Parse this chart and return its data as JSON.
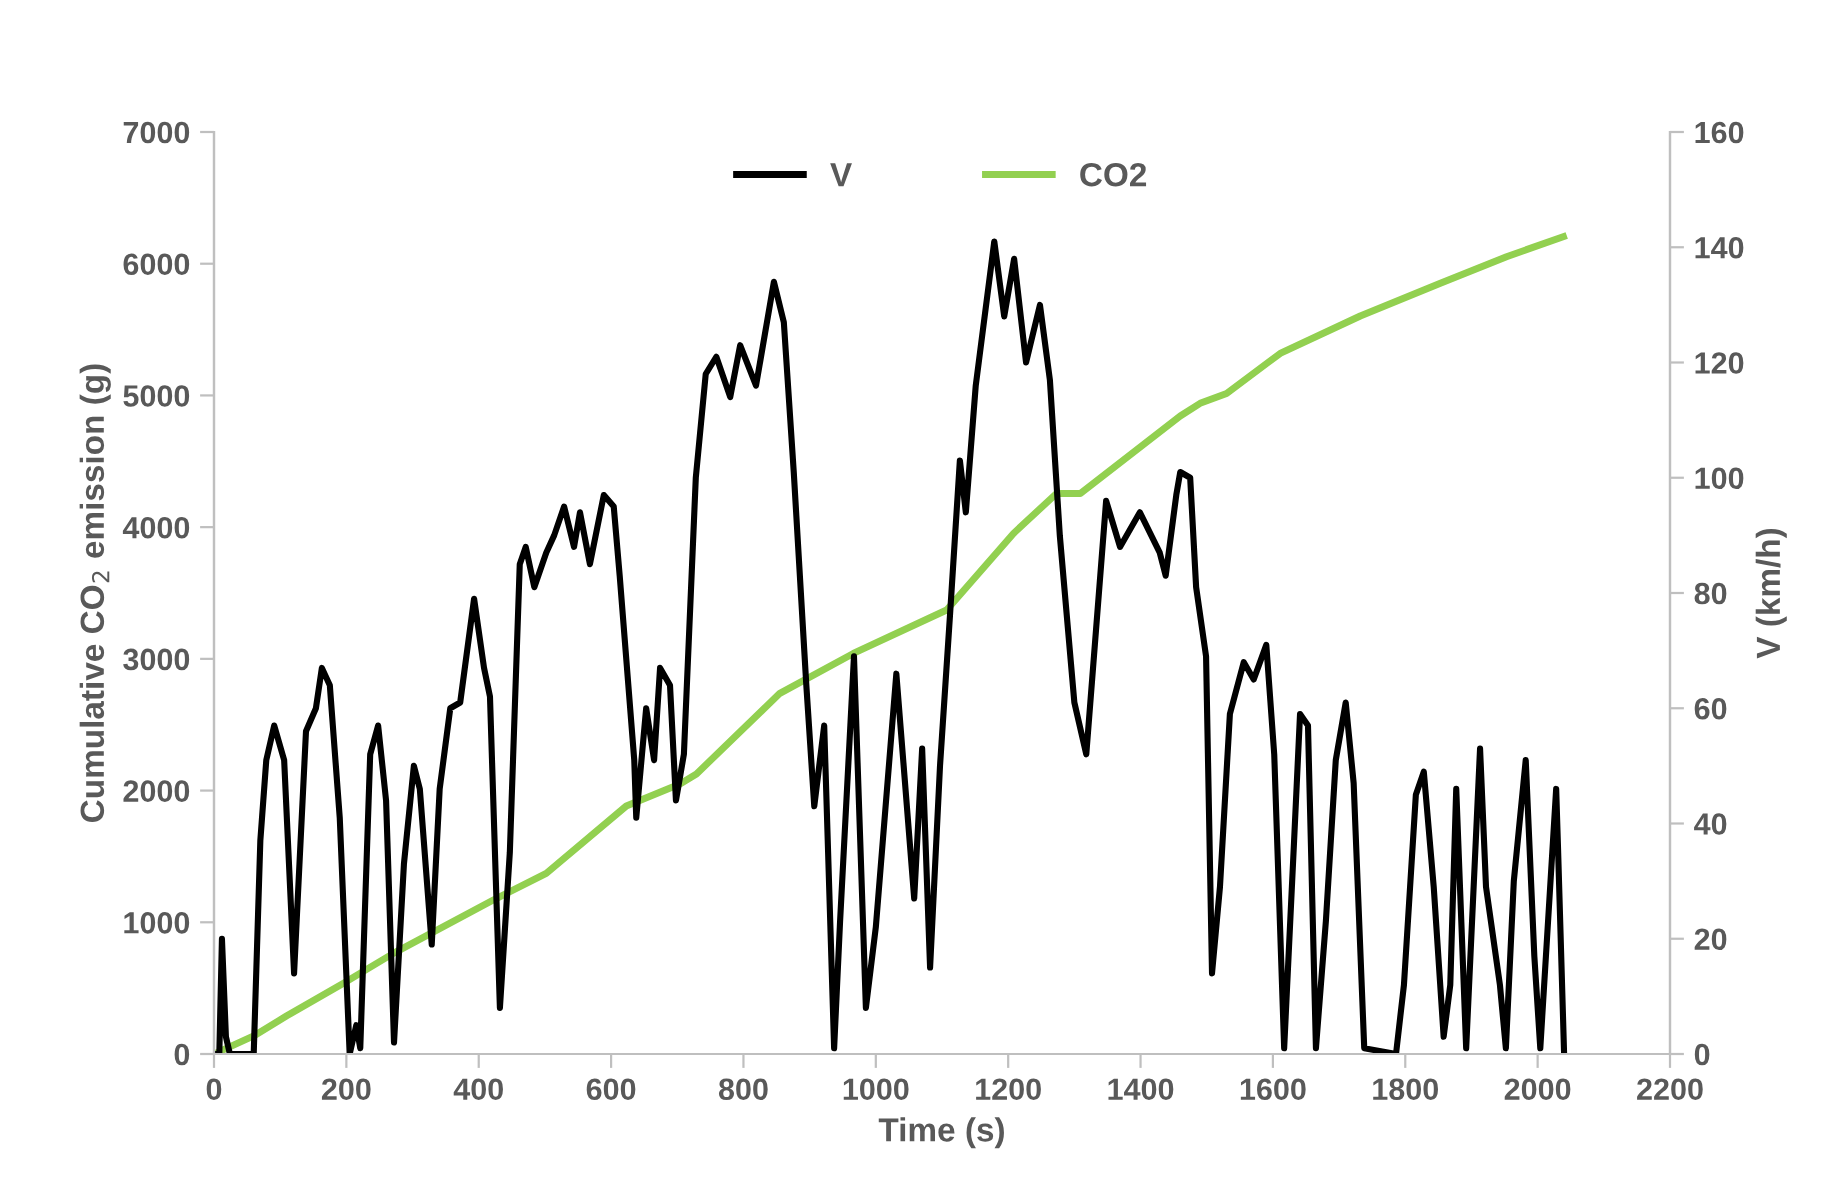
{
  "chart_data": {
    "type": "line",
    "xlabel": "Time (s)",
    "ylabel": "Cumulative CO$_{2}$ emission (g)",
    "y2label": "V (km/h)",
    "xlim": [
      0,
      2200
    ],
    "xticks": [
      0,
      200,
      400,
      600,
      800,
      1000,
      1200,
      1400,
      1600,
      1800,
      2000,
      2200
    ],
    "ylim": [
      0,
      7000
    ],
    "yticks": [
      0,
      1000,
      2000,
      3000,
      4000,
      5000,
      6000,
      7000
    ],
    "y2lim": [
      0,
      160
    ],
    "y2ticks": [
      0,
      20,
      40,
      60,
      80,
      100,
      120,
      140,
      160
    ],
    "grid": false,
    "legend": "top",
    "marker": "none",
    "line_style": "solid",
    "series": [
      {
        "name": "V",
        "color": "#000000",
        "axis": "y2",
        "x": [
          0,
          8,
          12,
          18,
          24,
          60,
          70,
          79,
          91,
          106,
          121,
          139,
          154,
          163,
          175,
          190,
          205,
          215,
          221,
          236,
          248,
          260,
          272,
          287,
          302,
          311,
          329,
          341,
          357,
          372,
          393,
          408,
          417,
          432,
          447,
          462,
          471,
          484,
          502,
          514,
          529,
          544,
          553,
          568,
          589,
          604,
          613,
          635,
          638,
          653,
          665,
          674,
          689,
          698,
          710,
          728,
          743,
          759,
          780,
          795,
          819,
          846,
          861,
          876,
          895,
          907,
          922,
          937,
          946,
          967,
          985,
          1000,
          1031,
          1058,
          1070,
          1082,
          1097,
          1112,
          1127,
          1136,
          1151,
          1179,
          1194,
          1209,
          1227,
          1248,
          1263,
          1278,
          1300,
          1318,
          1348,
          1369,
          1399,
          1429,
          1438,
          1454,
          1460,
          1475,
          1484,
          1499,
          1508,
          1520,
          1535,
          1556,
          1571,
          1590,
          1602,
          1617,
          1632,
          1641,
          1653,
          1665,
          1680,
          1695,
          1710,
          1722,
          1738,
          1786,
          1798,
          1816,
          1828,
          1843,
          1858,
          1868,
          1877,
          1892,
          1913,
          1922,
          1943,
          1952,
          1964,
          1982,
          1995,
          2004,
          2028,
          2031,
          2040
        ],
        "values": [
          0,
          0,
          20,
          3,
          0,
          0,
          37,
          51,
          57,
          51,
          14,
          56,
          60,
          67,
          64,
          41,
          0,
          5,
          1,
          52,
          57,
          44,
          2,
          33,
          50,
          46,
          19,
          46,
          60,
          61,
          79,
          67,
          62,
          8,
          35,
          85,
          88,
          81,
          87,
          90,
          95,
          88,
          94,
          85,
          97,
          95,
          83,
          51,
          41,
          60,
          51,
          67,
          64,
          44,
          52,
          100,
          118,
          121,
          114,
          123,
          116,
          134,
          127,
          101,
          64,
          43,
          57,
          1,
          23,
          69,
          8,
          22,
          66,
          27,
          53,
          15,
          50,
          76,
          103,
          94,
          116,
          141,
          128,
          138,
          120,
          130,
          117,
          90,
          61,
          52,
          96,
          88,
          94,
          87,
          83,
          97,
          101,
          100,
          81,
          69,
          14,
          29,
          59,
          68,
          65,
          71,
          52,
          1,
          37,
          59,
          57,
          1,
          23,
          51,
          61,
          47,
          1,
          0,
          12,
          45,
          49,
          29,
          3,
          12,
          46,
          1,
          53,
          29,
          12,
          1,
          30,
          51,
          17,
          1,
          46,
          35,
          0
        ]
      },
      {
        "name": "CO2",
        "color": "#92d050",
        "axis": "y",
        "x": [
          0,
          60,
          110,
          195,
          271,
          422,
          502,
          623,
          704,
          729,
          855,
          966,
          1107,
          1208,
          1273,
          1309,
          1460,
          1490,
          1530,
          1611,
          1732,
          1853,
          1953,
          2039
        ],
        "values": [
          0,
          137,
          290,
          536,
          764,
          1169,
          1371,
          1883,
          2050,
          2126,
          2738,
          3041,
          3371,
          3952,
          4256,
          4256,
          4844,
          4940,
          5015,
          5319,
          5603,
          5851,
          6053,
          6206
        ]
      }
    ]
  }
}
